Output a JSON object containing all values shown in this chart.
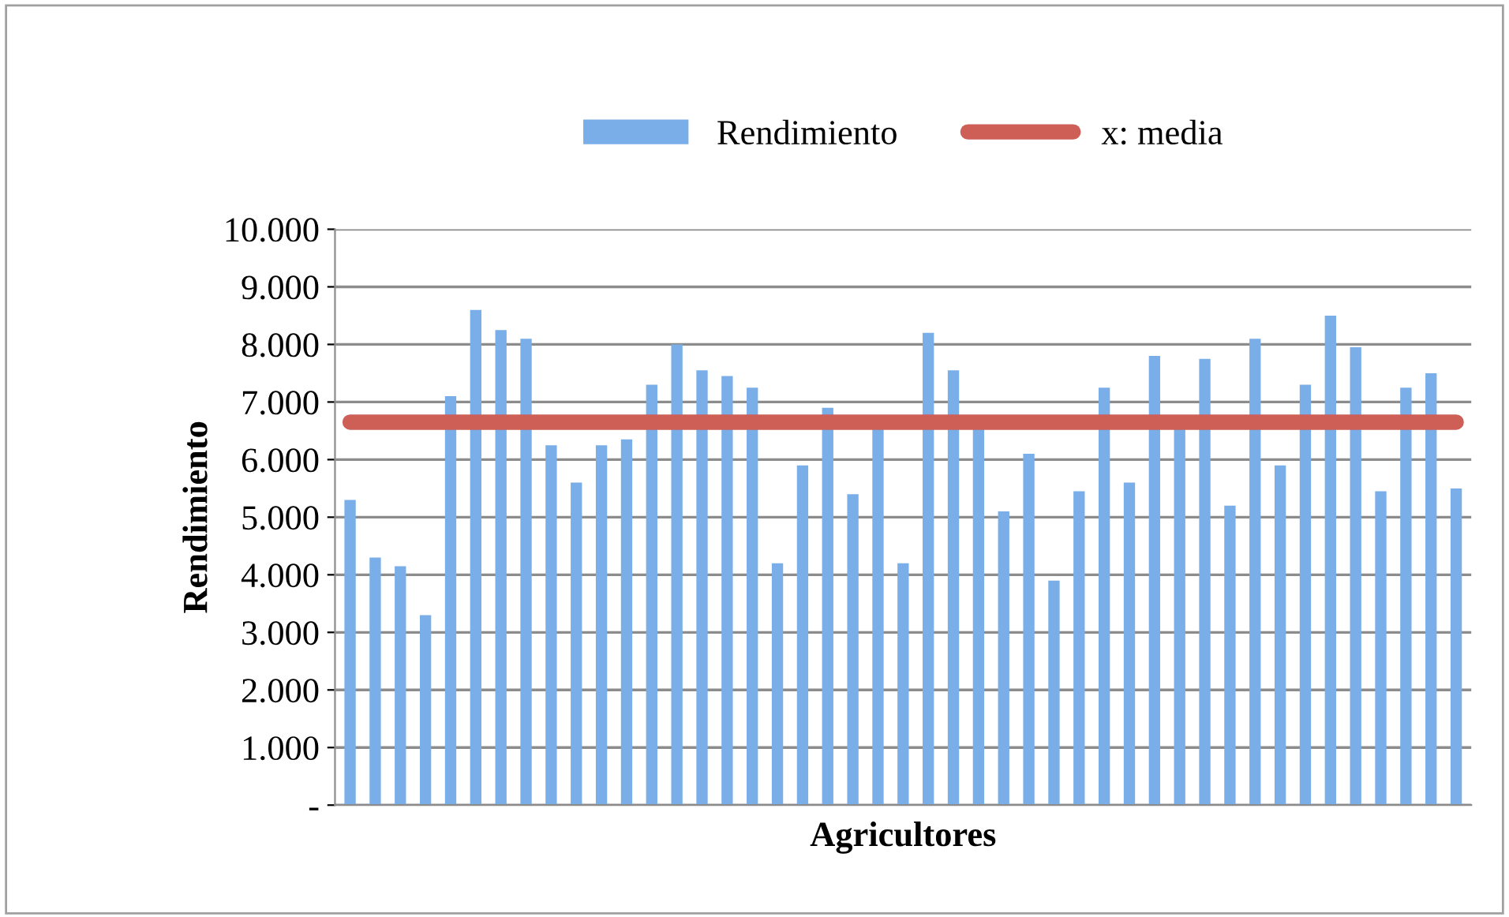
{
  "chart_data": {
    "type": "bar",
    "xlabel": "Agricultores",
    "ylabel": "Rendimiento",
    "categories": [
      null,
      null,
      null,
      null,
      null,
      null,
      null,
      null,
      null,
      null,
      null,
      null,
      null,
      null,
      null,
      null,
      null,
      null,
      null,
      null,
      null,
      null,
      null,
      null,
      null,
      null,
      null,
      null,
      null,
      null,
      null,
      null,
      null,
      null,
      null,
      null,
      null,
      null,
      null,
      null,
      null,
      null,
      null,
      null,
      null
    ],
    "series": [
      {
        "name": "Rendimiento",
        "color": "#7aaee8",
        "values": [
          5300,
          4300,
          4150,
          3300,
          7100,
          8600,
          8250,
          8100,
          6250,
          5600,
          6250,
          6350,
          7300,
          8000,
          7550,
          7450,
          7250,
          4200,
          5900,
          6900,
          5400,
          6550,
          4200,
          8200,
          7550,
          6550,
          5100,
          6100,
          3900,
          5450,
          7250,
          5600,
          7800,
          6550,
          7750,
          5200,
          8100,
          5900,
          7300,
          8500,
          7950,
          5450,
          7250,
          7500,
          5500
        ]
      },
      {
        "name": "x: media",
        "type": "line",
        "color": "#cd5f57",
        "values": [
          6650,
          6650,
          6650,
          6650,
          6650,
          6650,
          6650,
          6650,
          6650,
          6650,
          6650,
          6650,
          6650,
          6650,
          6650,
          6650,
          6650,
          6650,
          6650,
          6650,
          6650,
          6650,
          6650,
          6650,
          6650,
          6650,
          6650,
          6650,
          6650,
          6650,
          6650,
          6650,
          6650,
          6650,
          6650,
          6650,
          6650,
          6650,
          6650,
          6650,
          6650,
          6650,
          6650,
          6650,
          6650
        ]
      }
    ],
    "ylim": [
      0,
      10000
    ],
    "yticks": [
      {
        "value": 0,
        "label": "-"
      },
      {
        "value": 1000,
        "label": "1.000"
      },
      {
        "value": 2000,
        "label": "2.000"
      },
      {
        "value": 3000,
        "label": "3.000"
      },
      {
        "value": 4000,
        "label": "4.000"
      },
      {
        "value": 5000,
        "label": "5.000"
      },
      {
        "value": 6000,
        "label": "6.000"
      },
      {
        "value": 7000,
        "label": "7.000"
      },
      {
        "value": 8000,
        "label": "8.000"
      },
      {
        "value": 9000,
        "label": "9.000"
      },
      {
        "value": 10000,
        "label": "10.000"
      }
    ],
    "grid": "y",
    "legend": "top",
    "marker": "none"
  }
}
